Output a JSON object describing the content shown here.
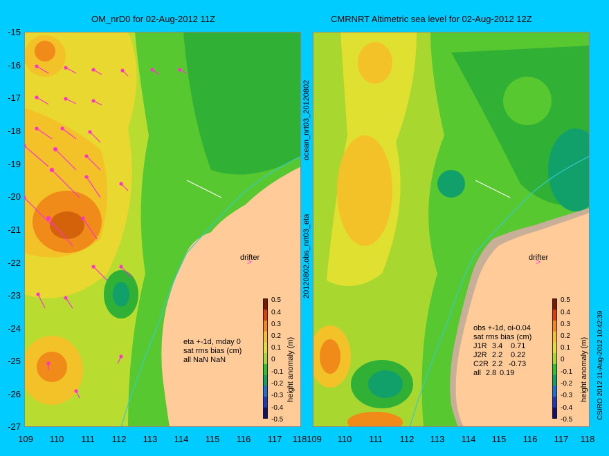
{
  "left_panel": {
    "title": "OM_nrD0 for 02-Aug-2012 11Z",
    "drifter_label": "drifter",
    "stats": [
      "eta +-1d, mday 0",
      "sat rms bias (cm)",
      "all NaN NaN"
    ]
  },
  "right_panel": {
    "title": "CMRNRT Altimetric sea level  for 02-Aug-2012 12Z",
    "drifter_label": "drifter",
    "stats_header": [
      "obs +-1d, oi-0.04",
      "sat rms bias (cm)"
    ],
    "stats_rows": [
      {
        "sat": "J1R",
        "rms": "3.4",
        "bias": "0.71"
      },
      {
        "sat": "J2R",
        "rms": "2.2",
        "bias": "0.22"
      },
      {
        "sat": "C2R",
        "rms": "2.2",
        "bias": "-0.73"
      },
      {
        "sat": "all",
        "rms": "2.8",
        "bias": "0.19"
      }
    ]
  },
  "axes": {
    "y_ticks": [
      "-15",
      "-16",
      "-17",
      "-18",
      "-19",
      "-20",
      "-21",
      "-22",
      "-23",
      "-24",
      "-25",
      "-26",
      "-27"
    ],
    "x_ticks": [
      "109",
      "110",
      "111",
      "112",
      "113",
      "114",
      "115",
      "116",
      "117",
      "118"
    ]
  },
  "colorbar": {
    "label": "height anomaly (m)",
    "ticks": [
      "0.5",
      "0.4",
      "0.3",
      "0.2",
      "0.1",
      "0",
      "-0.1",
      "-0.2",
      "-0.3",
      "-0.4",
      "-0.5"
    ],
    "colors": [
      "#7a1a00",
      "#d4420a",
      "#f08a18",
      "#f2c228",
      "#e0e030",
      "#a8d830",
      "#30c030",
      "#12a06a",
      "#1f6fd0",
      "#1c3ab8",
      "#101070"
    ]
  },
  "side_text_middle": "20120802.obs_nrt03_eta",
  "side_text_top": "ocean_nrt03_20120802",
  "side_text_right": "CSIRO 2012  11-Aug-2012 10:42:39",
  "colors": {
    "background": "#00ccff",
    "land": "#ffcc99",
    "arrow": "#ff33cc",
    "current": "#33cccc"
  }
}
